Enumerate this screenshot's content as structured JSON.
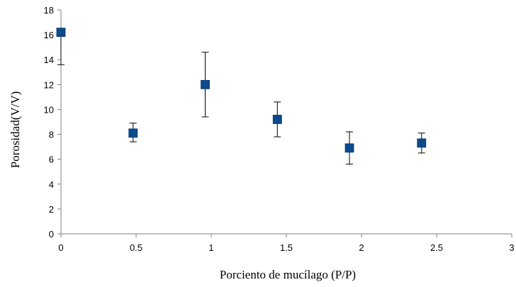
{
  "chart_data": {
    "type": "scatter",
    "title": "",
    "xlabel": "Porciento de mucílago (P/P)",
    "ylabel": "Porosidad(V/V)",
    "xlim": [
      0,
      3
    ],
    "ylim": [
      0,
      18
    ],
    "x_ticks": [
      0,
      0.5,
      1,
      1.5,
      2,
      2.5,
      3
    ],
    "x_tick_labels": [
      "0",
      "0.5",
      "1",
      "1.5",
      "2",
      "2.5",
      "3"
    ],
    "y_ticks": [
      0,
      2,
      4,
      6,
      8,
      10,
      12,
      14,
      16,
      18
    ],
    "y_tick_labels": [
      "0",
      "2",
      "4",
      "6",
      "8",
      "10",
      "12",
      "14",
      "16",
      "18"
    ],
    "grid": false,
    "legend": "none",
    "marker": "square",
    "marker_color": "#0b4a8b",
    "points": [
      {
        "x": 0.0,
        "y": 16.2,
        "err_low": 13.6,
        "err_high": 16.2
      },
      {
        "x": 0.48,
        "y": 8.1,
        "err_low": 7.4,
        "err_high": 8.9
      },
      {
        "x": 0.96,
        "y": 12.0,
        "err_low": 9.4,
        "err_high": 14.6
      },
      {
        "x": 1.44,
        "y": 9.2,
        "err_low": 7.8,
        "err_high": 10.6
      },
      {
        "x": 1.92,
        "y": 6.9,
        "err_low": 5.6,
        "err_high": 8.2
      },
      {
        "x": 2.4,
        "y": 7.3,
        "err_low": 6.5,
        "err_high": 8.1
      }
    ]
  }
}
